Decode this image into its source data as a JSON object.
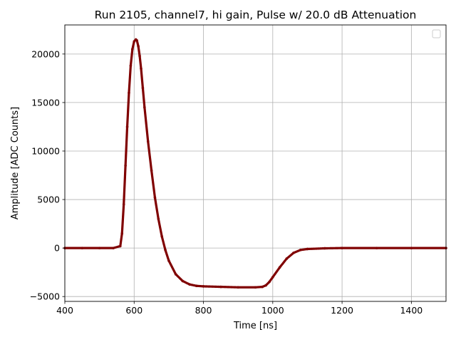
{
  "chart_data": {
    "type": "scatter",
    "title": "Run 2105, channel7, hi gain, Pulse w/ 20.0 dB Attenuation",
    "xlabel": "Time [ns]",
    "ylabel": "Amplitude [ADC Counts]",
    "xlim": [
      400,
      1500
    ],
    "ylim": [
      -5500,
      23000
    ],
    "xticks": [
      400,
      600,
      800,
      1000,
      1200,
      1400
    ],
    "yticks": [
      -5000,
      0,
      5000,
      10000,
      15000,
      20000
    ],
    "grid": true,
    "legend": "top-right (empty)",
    "colors": {
      "series": "#800000",
      "grid": "#b0b0b0"
    },
    "series": [
      {
        "x": [
          400,
          450,
          500,
          540,
          560,
          565,
          570,
          575,
          580,
          585,
          590,
          595,
          600,
          605,
          608,
          612,
          616,
          620,
          625,
          630,
          640,
          650,
          660,
          670,
          680,
          690,
          700,
          720,
          740,
          760,
          780,
          800,
          850,
          900,
          950,
          970,
          980,
          990,
          1000,
          1020,
          1040,
          1060,
          1080,
          1100,
          1150,
          1200,
          1300,
          1400,
          1500
        ],
        "y": [
          0,
          0,
          0,
          0,
          200,
          1500,
          4500,
          8500,
          12500,
          16000,
          18800,
          20500,
          21300,
          21500,
          21400,
          20800,
          19800,
          18500,
          16500,
          14500,
          11000,
          8000,
          5200,
          3000,
          1200,
          -200,
          -1300,
          -2700,
          -3400,
          -3750,
          -3900,
          -3950,
          -4000,
          -4050,
          -4050,
          -4000,
          -3850,
          -3500,
          -3000,
          -2000,
          -1100,
          -500,
          -200,
          -100,
          -30,
          0,
          0,
          0,
          0
        ]
      }
    ]
  }
}
